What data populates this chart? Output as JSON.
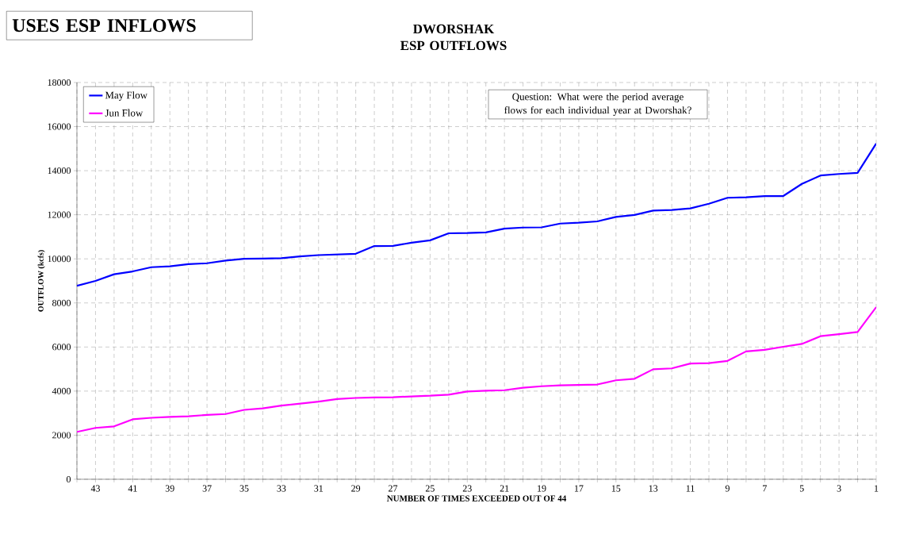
{
  "chart_data": {
    "type": "line",
    "title": "DWORSHAK ESP OUTFLOWS",
    "xlabel": "NUMBER OF TIMES EXCEEDED OUT OF 44",
    "ylabel": "OUTFLOW (kcfs)",
    "annotations": [
      "USES ESP INFLOWS",
      "Question:  What were the period average flows for each individual year at Dworshak?"
    ],
    "categories": [
      null,
      "43",
      null,
      "41",
      null,
      "39",
      null,
      "37",
      null,
      "35",
      null,
      "33",
      null,
      "31",
      null,
      "29",
      null,
      "27",
      null,
      "25",
      null,
      "23",
      null,
      "21",
      null,
      "19",
      null,
      "17",
      null,
      "15",
      null,
      "13",
      null,
      "11",
      null,
      "9",
      null,
      "7",
      null,
      "5",
      null,
      "3",
      null,
      "1"
    ],
    "ylim": [
      0,
      18000
    ],
    "yticks": [
      0,
      2000,
      4000,
      6000,
      8000,
      10000,
      12000,
      14000,
      16000,
      18000
    ],
    "grid": true,
    "legend": "top left",
    "series": [
      {
        "name": "May Flow",
        "color": "#0000ff",
        "values": [
          8780,
          9000,
          9300,
          9430,
          9620,
          9660,
          9760,
          9800,
          9920,
          10000,
          10010,
          10030,
          10110,
          10170,
          10200,
          10230,
          10580,
          10590,
          10730,
          10840,
          11160,
          11170,
          11200,
          11370,
          11420,
          11430,
          11600,
          11640,
          11700,
          11900,
          11990,
          12190,
          12220,
          12290,
          12500,
          12770,
          12790,
          12850,
          12850,
          13400,
          13780,
          13850,
          13900,
          15230
        ]
      },
      {
        "name": "Jun Flow",
        "color": "#ff00ff",
        "values": [
          2150,
          2330,
          2400,
          2720,
          2790,
          2830,
          2860,
          2920,
          2960,
          3150,
          3220,
          3340,
          3430,
          3520,
          3640,
          3690,
          3710,
          3720,
          3760,
          3790,
          3840,
          3980,
          4020,
          4040,
          4150,
          4220,
          4260,
          4280,
          4300,
          4490,
          4560,
          4990,
          5030,
          5250,
          5270,
          5370,
          5800,
          5870,
          6010,
          6140,
          6490,
          6580,
          6680,
          7810
        ]
      }
    ]
  }
}
